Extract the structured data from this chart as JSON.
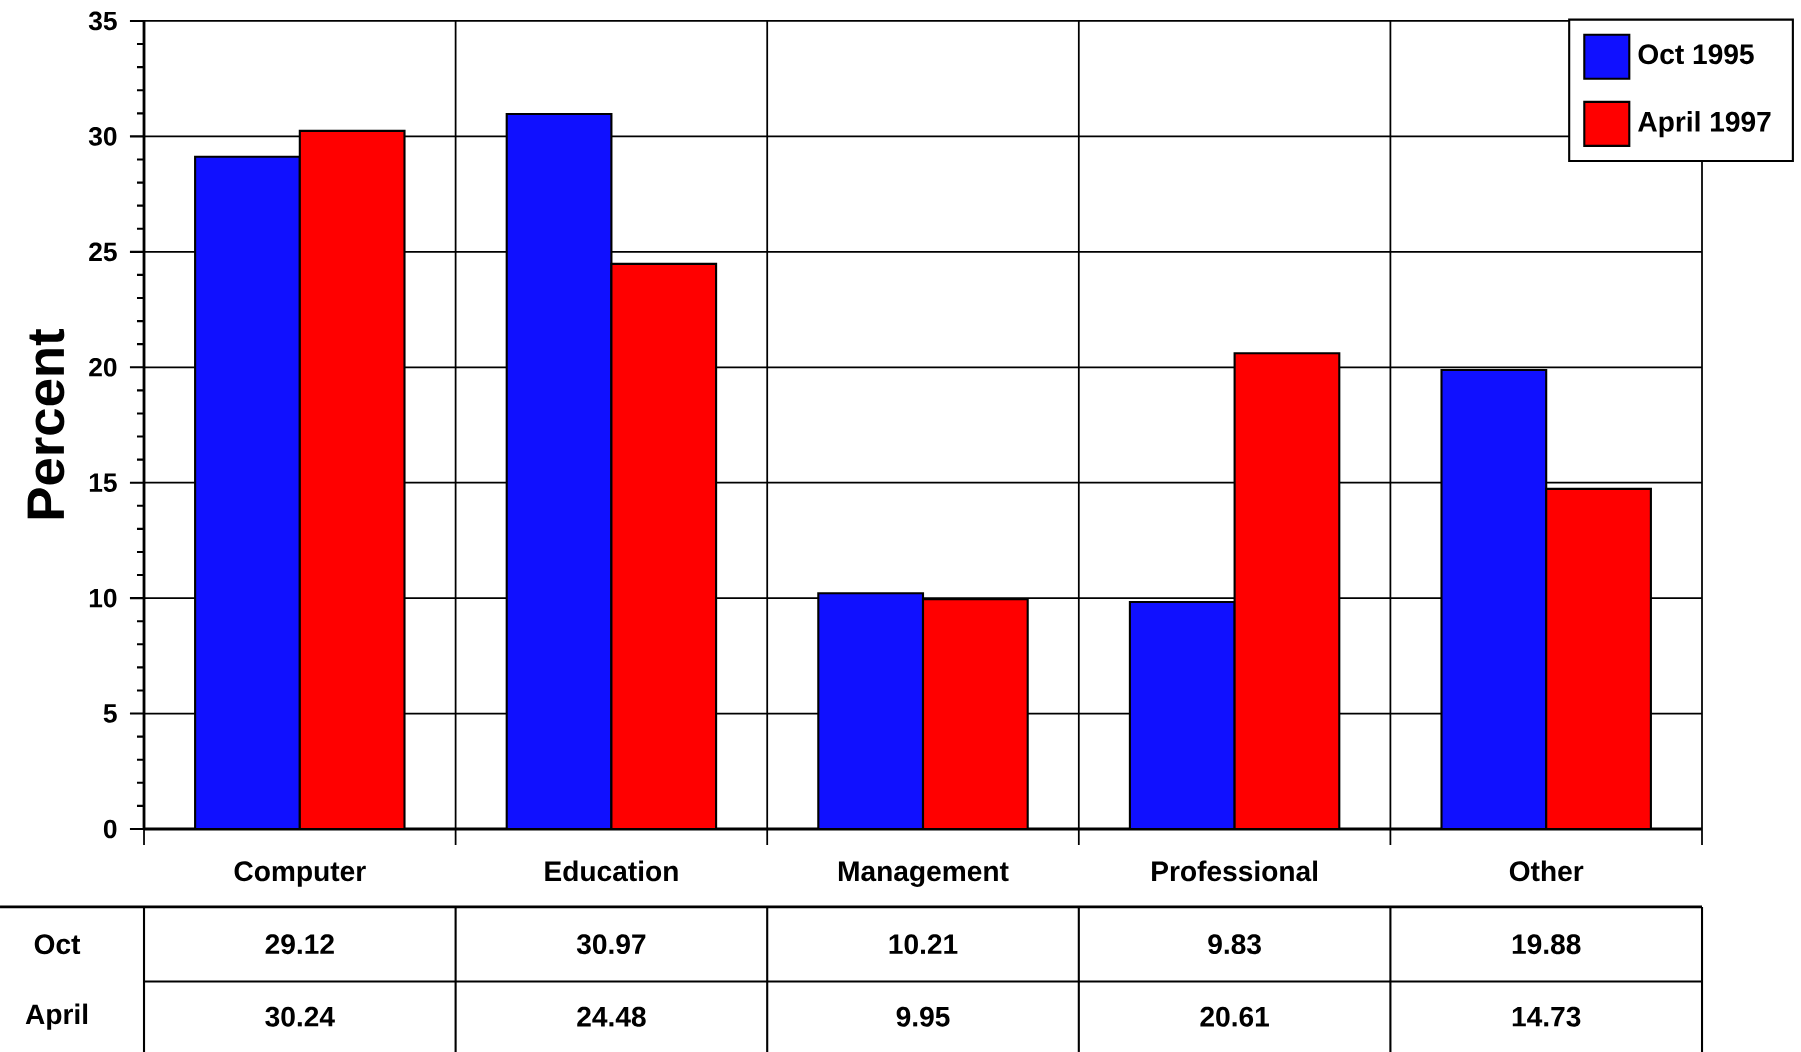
{
  "chart_data": {
    "type": "bar",
    "ylabel": "Percent",
    "categories": [
      "Computer",
      "Education",
      "Management",
      "Professional",
      "Other"
    ],
    "series": [
      {
        "name": "Oct 1995",
        "color": "#1010ff",
        "values": [
          29.12,
          30.97,
          10.21,
          9.83,
          19.88
        ]
      },
      {
        "name": "April 1997",
        "color": "#ff0000",
        "values": [
          30.24,
          24.48,
          9.95,
          20.61,
          14.73
        ]
      }
    ],
    "ylim": [
      0,
      35
    ],
    "yticks": [
      0,
      5,
      10,
      15,
      20,
      25,
      30,
      35
    ],
    "grid": true,
    "legend": "top right",
    "data_labels": true,
    "annotations": [
      "Oct",
      "April"
    ]
  }
}
